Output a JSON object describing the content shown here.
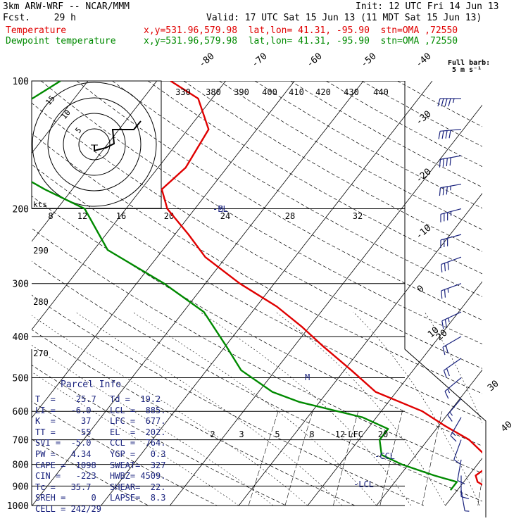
{
  "header": {
    "model": "3km ARW-WRF -- NCAR/MMM",
    "init": "Init: 12 UTC Fri 14 Jun 13",
    "fcst_label": "Fcst.",
    "fcst_value": "29 h",
    "valid": "Valid: 17 UTC Sat 15 Jun 13 (11 MDT Sat 15 Jun 13)",
    "temp_label": "Temperature",
    "dew_label": "Dewpoint temperature",
    "location_info": "x,y=531.96,579.98  lat,lon= 41.31, -95.90  stn=OMA ,72550"
  },
  "barb_legend": {
    "title": "Full barb:",
    "value": "5 m s⁻¹"
  },
  "colors": {
    "temperature": "#e00000",
    "dewpoint": "#008a00",
    "parcel_text": "#1a237e",
    "grid": "#000000"
  },
  "chart_data": {
    "type": "line",
    "chart_kind": "skew-T log-p diagram",
    "ylabel": "",
    "pressure_ticks": [
      "100",
      "200",
      "300",
      "400",
      "500",
      "600",
      "700",
      "800",
      "900",
      "1000"
    ],
    "isotherm_labels": [
      "-80",
      "-70",
      "-60",
      "-50",
      "-40",
      "-30",
      "-20",
      "-10",
      "0",
      "10",
      "20",
      "30",
      "40"
    ],
    "theta_labels": [
      "330",
      "380",
      "390",
      "400",
      "410",
      "420",
      "430",
      "440",
      "290",
      "280",
      "270"
    ],
    "mixing_ratio_labels": [
      "2",
      "3",
      "5",
      "8",
      "12",
      "20"
    ],
    "level_labels": [
      "-LFC",
      "-CCL",
      "-LCL",
      "-EL"
    ],
    "series": [
      {
        "name": "Temperature",
        "color": "#e00000",
        "points": [
          [
            100,
            -68
          ],
          [
            110,
            -62
          ],
          [
            130,
            -57
          ],
          [
            160,
            -56
          ],
          [
            180,
            -57
          ],
          [
            200,
            -54
          ],
          [
            230,
            -48
          ],
          [
            260,
            -43
          ],
          [
            300,
            -35
          ],
          [
            340,
            -27
          ],
          [
            380,
            -21
          ],
          [
            420,
            -16
          ],
          [
            480,
            -9
          ],
          [
            540,
            -3
          ],
          [
            600,
            6
          ],
          [
            650,
            11
          ],
          [
            700,
            16
          ],
          [
            760,
            20
          ],
          [
            800,
            22
          ],
          [
            850,
            21
          ],
          [
            880,
            22
          ],
          [
            920,
            25
          ]
        ]
      },
      {
        "name": "Dewpoint temperature",
        "color": "#008a00",
        "points": [
          [
            100,
            -84
          ],
          [
            120,
            -88
          ],
          [
            150,
            -87
          ],
          [
            160,
            -82
          ],
          [
            180,
            -74
          ],
          [
            200,
            -66
          ],
          [
            250,
            -58
          ],
          [
            300,
            -46
          ],
          [
            350,
            -37
          ],
          [
            420,
            -30
          ],
          [
            480,
            -25
          ],
          [
            540,
            -18
          ],
          [
            570,
            -13
          ],
          [
            620,
            -2
          ],
          [
            660,
            3
          ],
          [
            700,
            3
          ],
          [
            760,
            5
          ],
          [
            800,
            9
          ],
          [
            850,
            15
          ],
          [
            880,
            19
          ],
          [
            920,
            19
          ]
        ]
      }
    ],
    "wind_barbs_kt": [
      {
        "p": 110,
        "dir": 270,
        "spd": 45
      },
      {
        "p": 130,
        "dir": 265,
        "spd": 40
      },
      {
        "p": 150,
        "dir": 260,
        "spd": 40
      },
      {
        "p": 175,
        "dir": 260,
        "spd": 35
      },
      {
        "p": 200,
        "dir": 255,
        "spd": 35
      },
      {
        "p": 230,
        "dir": 255,
        "spd": 30
      },
      {
        "p": 260,
        "dir": 250,
        "spd": 30
      },
      {
        "p": 300,
        "dir": 250,
        "spd": 25
      },
      {
        "p": 350,
        "dir": 245,
        "spd": 25
      },
      {
        "p": 400,
        "dir": 240,
        "spd": 20
      },
      {
        "p": 450,
        "dir": 235,
        "spd": 20
      },
      {
        "p": 500,
        "dir": 230,
        "spd": 15
      },
      {
        "p": 560,
        "dir": 220,
        "spd": 15
      },
      {
        "p": 620,
        "dir": 210,
        "spd": 15
      },
      {
        "p": 700,
        "dir": 200,
        "spd": 10
      },
      {
        "p": 780,
        "dir": 190,
        "spd": 10
      },
      {
        "p": 850,
        "dir": 180,
        "spd": 10
      },
      {
        "p": 920,
        "dir": 170,
        "spd": 5
      }
    ],
    "hodograph": {
      "unit_label": "kts",
      "ring_labels": [
        "15",
        "10",
        "5"
      ],
      "axis_labels": [
        "8",
        "12",
        "16",
        "20",
        "24",
        "28",
        "32"
      ],
      "storm_motion_label": "M"
    }
  },
  "parcel_info": {
    "title": "Parcel Info",
    "rows": [
      [
        "T  =    25.7",
        "Td =  19.2"
      ],
      [
        "LI =   -6.0",
        "LCL =  885."
      ],
      [
        "K  =     37",
        "LFC =  677."
      ],
      [
        "TT =     55",
        "EL  =  202."
      ],
      [
        "SVI =  -5.0",
        "CCL =  764."
      ],
      [
        "PW =   4.34",
        "YGP =   0.3"
      ],
      [
        "CAPE =  1098",
        "SWEAT=  327"
      ],
      [
        "CIN =   -223",
        "HWBZ= 4509."
      ],
      [
        "Tc =   35.7",
        "SHEAR=  22."
      ],
      [
        "SREH =     0",
        "LAPSE=  8.3"
      ],
      [
        "CELL = 242/29",
        ""
      ]
    ]
  }
}
